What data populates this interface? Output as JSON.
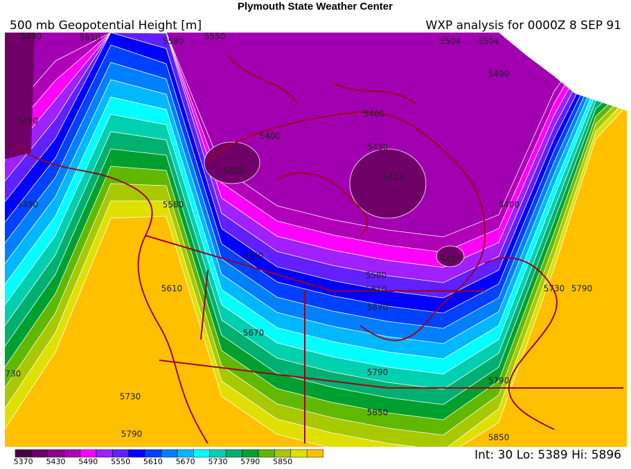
{
  "header": {
    "title": "Plymouth State Weather Center",
    "product": "500 mb Geopotential Height [m]",
    "analysis": "WXP analysis for 0000Z  8 SEP 91"
  },
  "legend": {
    "labels": [
      "5370",
      "5430",
      "5490",
      "5550",
      "5610",
      "5670",
      "5730",
      "5790",
      "5850"
    ]
  },
  "map": {
    "contour_labels": [
      "5490",
      "5610",
      "5580",
      "5550",
      "5504",
      "5504",
      "5490",
      "5460",
      "5430",
      "5413",
      "5409",
      "5400",
      "5423",
      "5490",
      "5490",
      "5580",
      "5550",
      "5610",
      "5580",
      "5610",
      "5670",
      "5670",
      "5730",
      "5730",
      "5790",
      "5790",
      "5790",
      "5850",
      "5850",
      "5730",
      "5790",
      "5400"
    ]
  },
  "footer": {
    "interval": "Int: 30",
    "low": "Lo: 5389",
    "high": "Hi: 5896"
  }
}
